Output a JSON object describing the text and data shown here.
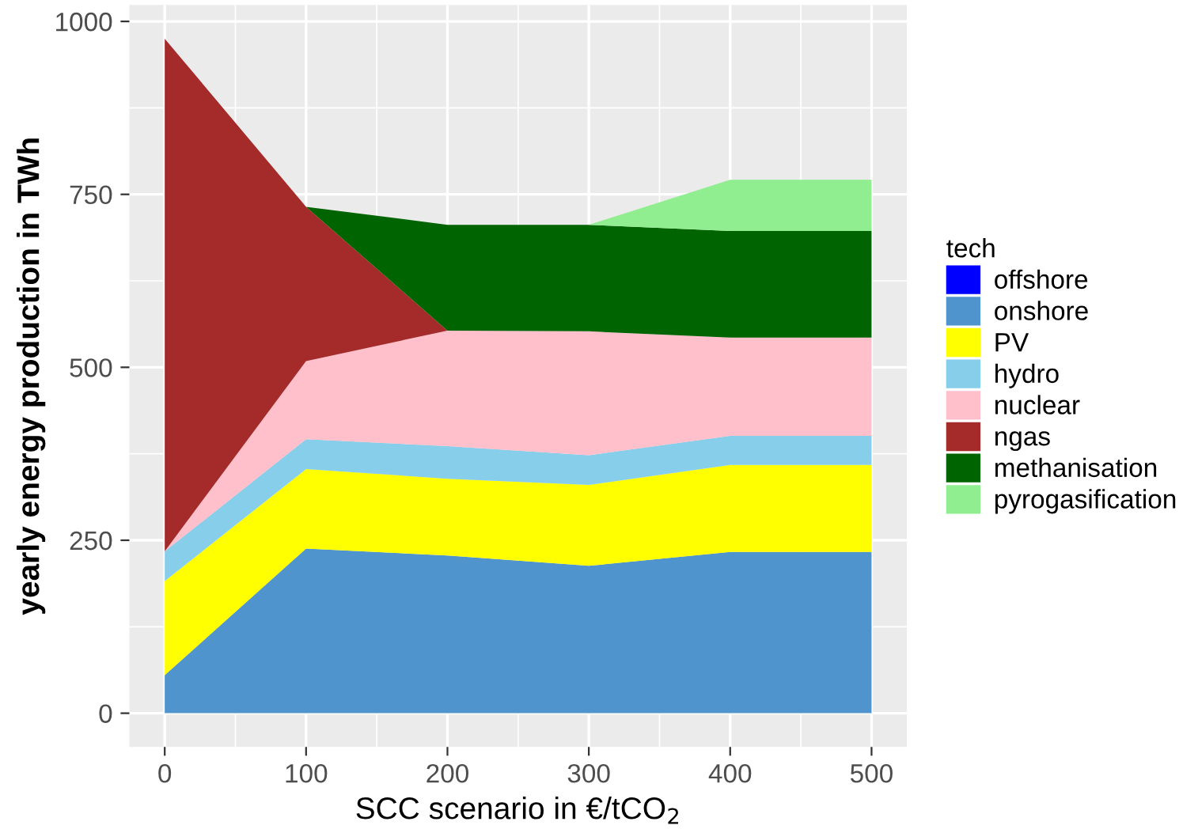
{
  "chart_data": {
    "type": "area",
    "stacked": true,
    "xlabel": "SCC scenario in €/tCO$_{2}$",
    "ylabel": "yearly energy production in TWh",
    "legend_title": "tech",
    "x": [
      0,
      100,
      200,
      300,
      400,
      500
    ],
    "series": [
      {
        "name": "offshore",
        "color": "#0000ff",
        "values": [
          null,
          null,
          null,
          null,
          null,
          null
        ]
      },
      {
        "name": "onshore",
        "color": "#4f94cd",
        "values": [
          55,
          238,
          228,
          213,
          233,
          233
        ]
      },
      {
        "name": "PV",
        "color": "#ffff00",
        "values": [
          136,
          115,
          111,
          117,
          126,
          126
        ]
      },
      {
        "name": "hydro",
        "color": "#87ceeb",
        "values": [
          43,
          43,
          47,
          43,
          42,
          42
        ]
      },
      {
        "name": "nuclear",
        "color": "#ffc0cb",
        "values": [
          0,
          113,
          167,
          179,
          142,
          142
        ]
      },
      {
        "name": "ngas",
        "color": "#a52a2a",
        "values": [
          741,
          223,
          0,
          0,
          0,
          0
        ]
      },
      {
        "name": "methanisation",
        "color": "#006400",
        "values": [
          0,
          0,
          153,
          154,
          154,
          154
        ]
      },
      {
        "name": "pyrogasification",
        "color": "#90ee90",
        "values": [
          0,
          0,
          0,
          0,
          74,
          74
        ]
      }
    ],
    "xlim": [
      -25,
      525
    ],
    "ylim": [
      -48.75,
      1023.75
    ],
    "xticks": [
      0,
      100,
      200,
      300,
      400,
      500
    ],
    "yticks": [
      0,
      250,
      500,
      750,
      1000
    ],
    "grid": true,
    "legend": "right"
  }
}
